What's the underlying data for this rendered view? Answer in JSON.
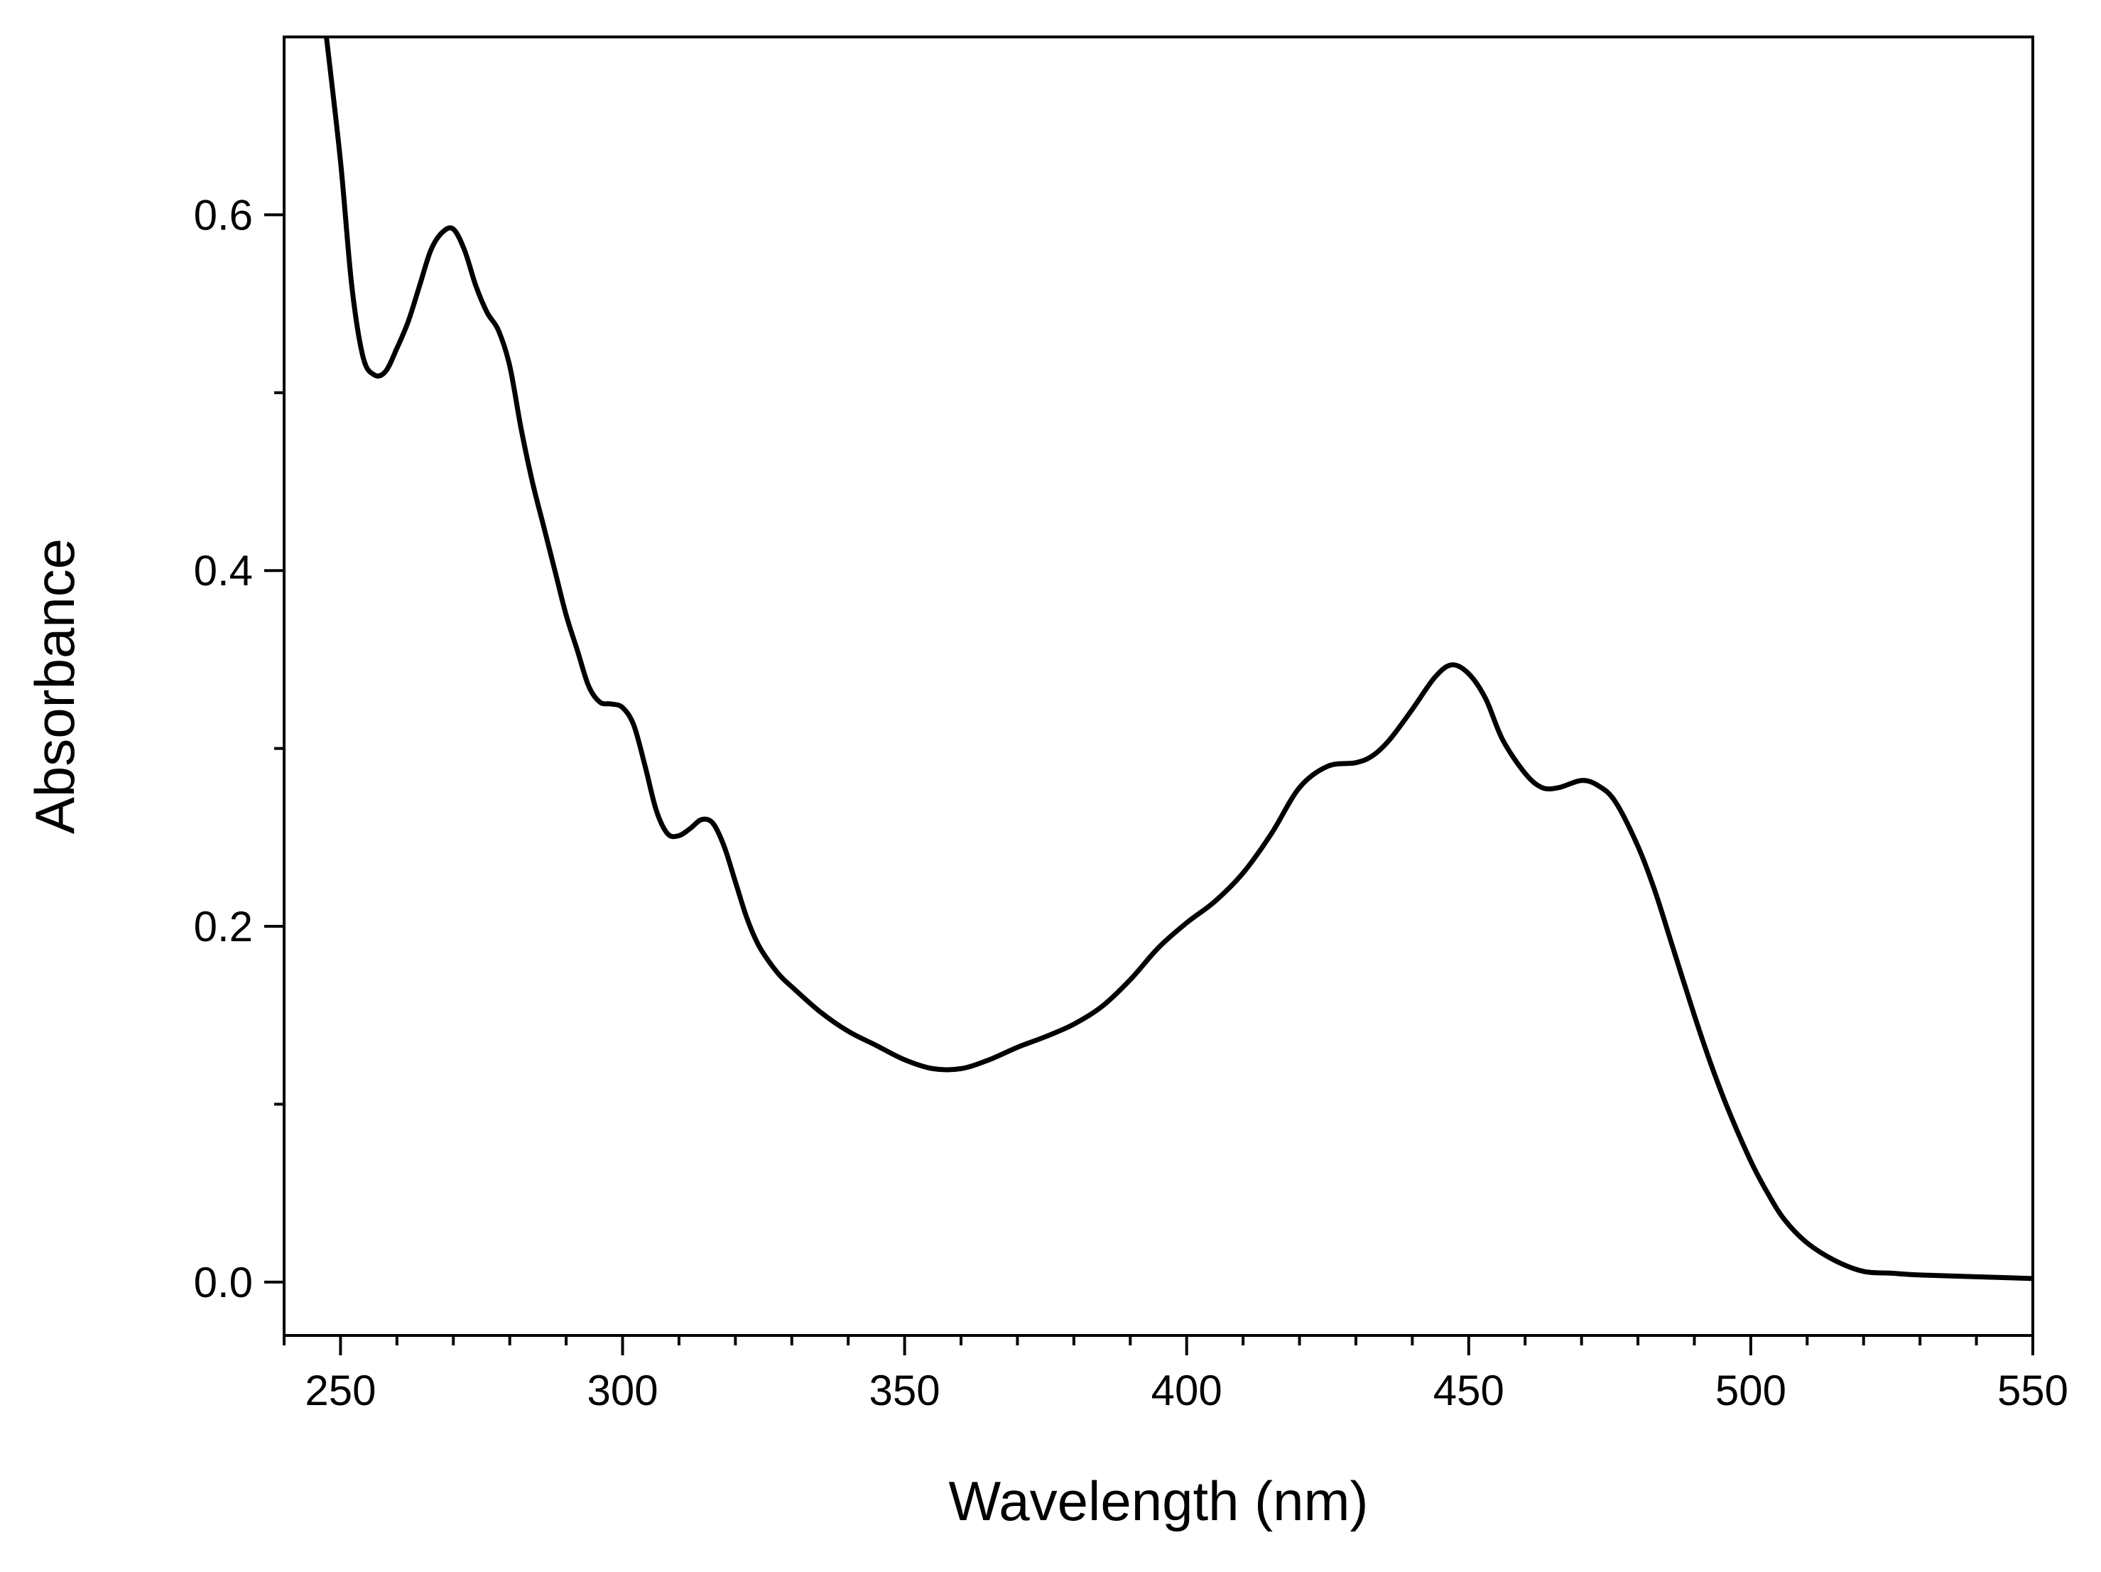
{
  "chart_data": {
    "type": "line",
    "title": "",
    "xlabel": "Wavelength (nm)",
    "ylabel": "Absorbance",
    "xlim": [
      240,
      550
    ],
    "ylim": [
      -0.03,
      0.7
    ],
    "x_ticks_major": [
      250,
      300,
      350,
      400,
      450,
      500,
      550
    ],
    "x_tick_labels": [
      "250",
      "300",
      "350",
      "400",
      "450",
      "500",
      "550"
    ],
    "x_ticks_minor_step": 10,
    "y_ticks_major": [
      0.0,
      0.2,
      0.4,
      0.6
    ],
    "y_tick_labels": [
      "0.0",
      "0.2",
      "0.4",
      "0.6"
    ],
    "y_ticks_minor": [
      0.1,
      0.3,
      0.5
    ],
    "grid": false,
    "legend": "none",
    "line_color": "#000000",
    "series": [
      {
        "name": "Absorbance",
        "x": [
          247.5,
          250,
          252,
          254,
          256,
          258,
          260,
          262,
          264,
          266,
          268,
          270,
          272,
          274,
          276,
          278,
          280,
          282,
          284,
          286,
          288,
          290,
          292,
          294,
          296,
          298,
          300,
          302,
          304,
          306,
          308,
          310,
          312,
          314,
          316,
          318,
          320,
          322,
          324,
          326,
          328,
          330,
          335,
          340,
          345,
          350,
          355,
          360,
          365,
          370,
          375,
          380,
          385,
          390,
          395,
          400,
          405,
          410,
          415,
          420,
          425,
          430,
          433,
          436,
          440,
          444,
          447,
          450,
          453,
          456,
          460,
          463,
          466,
          470,
          473,
          476,
          480,
          483,
          486,
          490,
          493,
          496,
          500,
          503,
          506,
          510,
          515,
          520,
          525,
          530,
          540,
          550
        ],
        "y": [
          0.7,
          0.63,
          0.56,
          0.52,
          0.51,
          0.512,
          0.525,
          0.54,
          0.56,
          0.58,
          0.59,
          0.592,
          0.58,
          0.56,
          0.545,
          0.535,
          0.515,
          0.48,
          0.45,
          0.425,
          0.4,
          0.375,
          0.355,
          0.335,
          0.326,
          0.325,
          0.323,
          0.313,
          0.29,
          0.265,
          0.252,
          0.251,
          0.255,
          0.26,
          0.258,
          0.245,
          0.225,
          0.205,
          0.19,
          0.18,
          0.172,
          0.166,
          0.152,
          0.141,
          0.133,
          0.125,
          0.12,
          0.12,
          0.125,
          0.132,
          0.138,
          0.145,
          0.155,
          0.17,
          0.188,
          0.202,
          0.214,
          0.23,
          0.252,
          0.278,
          0.29,
          0.292,
          0.296,
          0.305,
          0.322,
          0.34,
          0.347,
          0.342,
          0.328,
          0.305,
          0.286,
          0.278,
          0.278,
          0.282,
          0.279,
          0.27,
          0.245,
          0.22,
          0.19,
          0.15,
          0.122,
          0.097,
          0.068,
          0.05,
          0.035,
          0.022,
          0.012,
          0.006,
          0.005,
          0.004,
          0.003,
          0.002
        ]
      }
    ]
  }
}
